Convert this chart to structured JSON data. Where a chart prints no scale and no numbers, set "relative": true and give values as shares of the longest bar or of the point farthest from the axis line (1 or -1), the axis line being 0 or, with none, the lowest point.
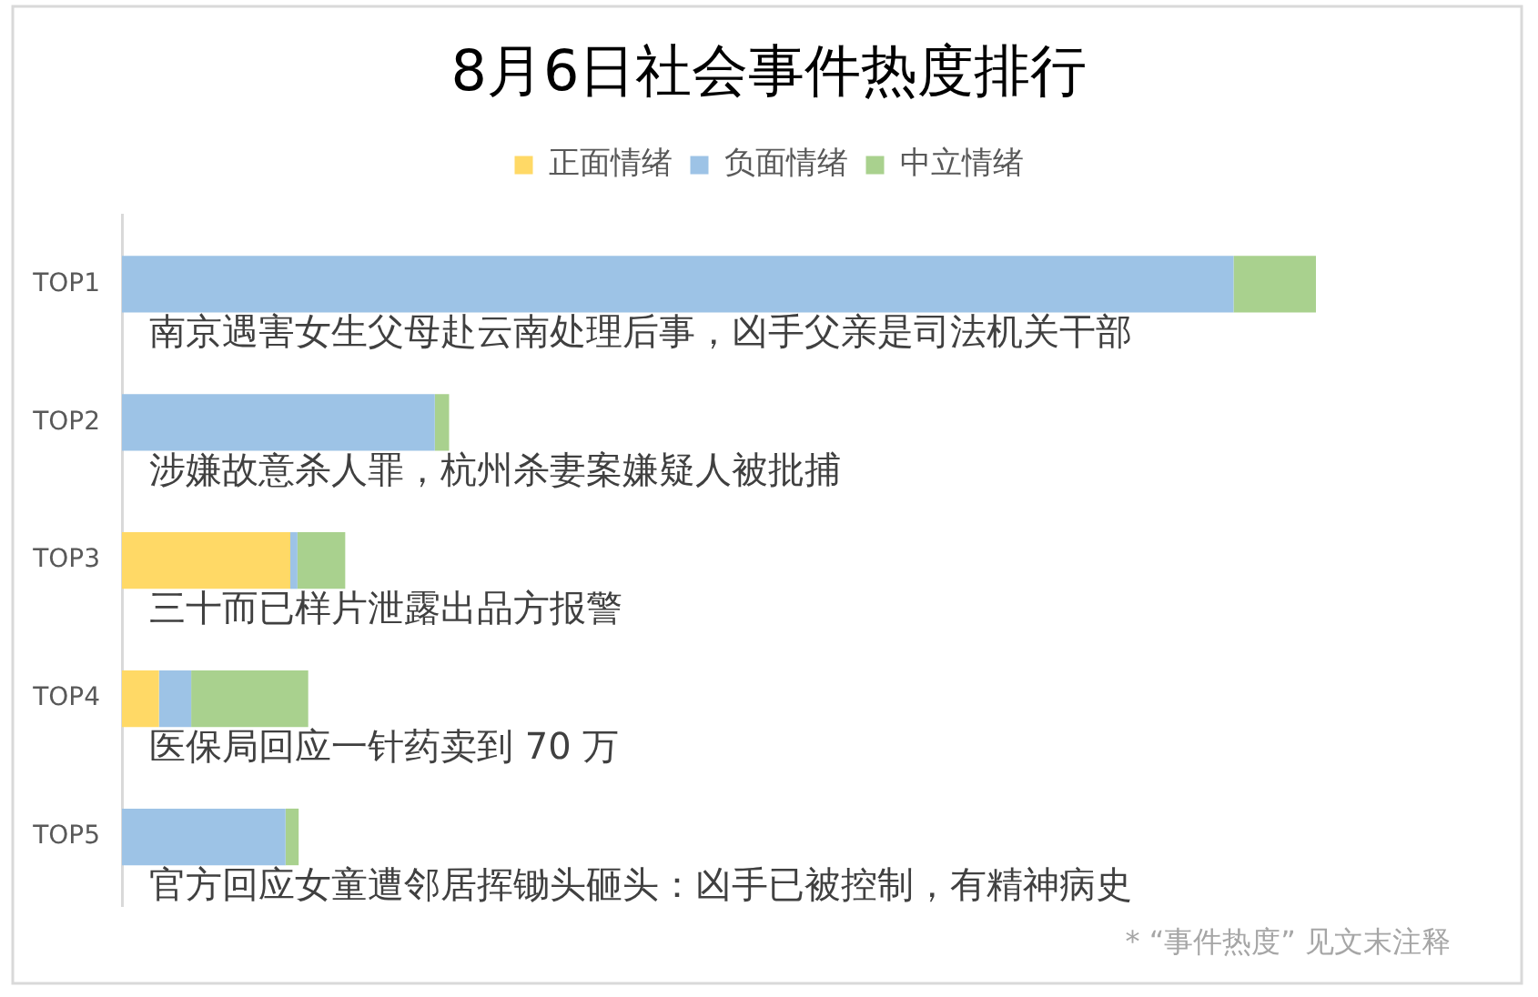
{
  "chart_data": {
    "type": "bar",
    "orientation": "horizontal",
    "stacked": true,
    "relative": true,
    "title": "8月6日社会事件热度排行",
    "legend": "top",
    "categories": [
      "TOP1",
      "TOP2",
      "TOP3",
      "TOP4",
      "TOP5"
    ],
    "series": [
      {
        "name": "正面情绪",
        "color": "#ffd966",
        "values": [
          0,
          0,
          0.141,
          0.031,
          0
        ]
      },
      {
        "name": "负面情绪",
        "color": "#9dc3e6",
        "values": [
          0.931,
          0.262,
          0.006,
          0.027,
          0.137
        ]
      },
      {
        "name": "中立情绪",
        "color": "#a9d18e",
        "values": [
          0.069,
          0.012,
          0.04,
          0.098,
          0.011
        ]
      }
    ],
    "annotations": [
      "南京遇害女生父母赴云南处理后事，凶手父亲是司法机关干部",
      "涉嫌故意杀人罪，杭州杀妻案嫌疑人被批捕",
      "三十而已样片泄露出品方报警",
      "医保局回应一针药卖到 70 万",
      "官方回应女童遭邻居挥锄头砸头：凶手已被控制，有精神病史",
      "* “事件热度” 见文末注释"
    ]
  }
}
